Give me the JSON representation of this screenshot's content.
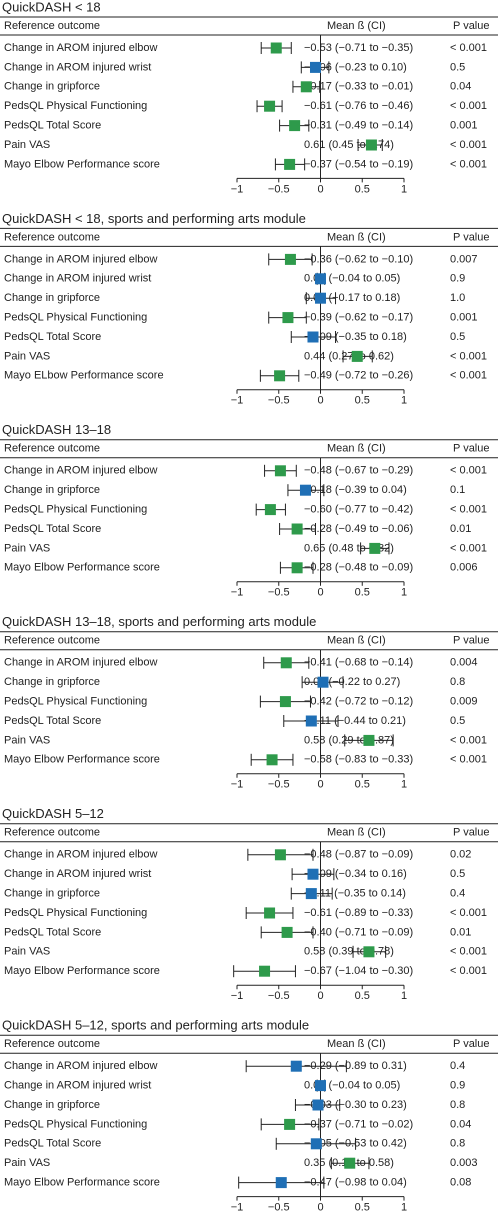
{
  "chart_data": [
    {
      "type": "forest",
      "title": "QuickDASH < 18",
      "columns": [
        "Reference outcome",
        "Mean ß (CI)",
        "P value"
      ],
      "categories": [
        "Change in AROM injured elbow",
        "Change in AROM injured wrist",
        "Change in gripforce",
        "PedsQL Physical Functioning",
        "PedsQL Total Score",
        "Pain VAS",
        "Mayo Elbow Performance score"
      ],
      "values": [
        -0.53,
        -0.06,
        -0.17,
        -0.61,
        -0.31,
        0.61,
        -0.37
      ],
      "lower": [
        -0.71,
        -0.23,
        -0.33,
        -0.76,
        -0.49,
        0.45,
        -0.54
      ],
      "upper": [
        -0.35,
        0.1,
        -0.01,
        -0.46,
        -0.14,
        0.74,
        -0.19
      ],
      "value_labels": [
        "−0.53 (−0.71 to −0.35)",
        "−0.06 (−0.23 to 0.10)",
        "−0.17 (−0.33 to −0.01)",
        "−0.61 (−0.76 to −0.46)",
        "−0.31 (−0.49 to −0.14)",
        "0.61 (0.45 to 0.74)",
        "−0.37 (−0.54 to −0.19)"
      ],
      "p_values": [
        "< 0.001",
        "0.5",
        "0.04",
        "< 0.001",
        "0.001",
        "< 0.001",
        "< 0.001"
      ],
      "colors": [
        "#2e9a4b",
        "#1f6fb5",
        "#2e9a4b",
        "#2e9a4b",
        "#2e9a4b",
        "#2e9a4b",
        "#2e9a4b"
      ],
      "xlim": [
        -1,
        1
      ],
      "xticks": [
        {
          "value": -1,
          "label": "−1"
        },
        {
          "value": -0.5,
          "label": "−0.5"
        },
        0,
        0.5,
        1
      ]
    },
    {
      "type": "forest",
      "title": "QuickDASH < 18, sports and performing arts module",
      "columns": [
        "Reference outcome",
        "Mean ß (CI)",
        "P value"
      ],
      "categories": [
        "Change in AROM injured elbow",
        "Change in AROM injured wrist",
        "Change in gripforce",
        "PedsQL Physical Functioning",
        "PedsQL Total Score",
        "Pain VAS",
        "Mayo ELbow Performance score"
      ],
      "values": [
        -0.36,
        0,
        0,
        -0.39,
        -0.09,
        0.44,
        -0.49
      ],
      "lower": [
        -0.62,
        -0.04,
        -0.17,
        -0.62,
        -0.35,
        0.27,
        -0.72
      ],
      "upper": [
        -0.1,
        0.05,
        0.18,
        -0.17,
        0.18,
        0.62,
        -0.26
      ],
      "value_labels": [
        "−0.36 (−0.62 to −0.10)",
        "0.00 (−0.04 to 0.05)",
        "0.00 (−0.17 to 0.18)",
        "−0.39 (−0.62 to −0.17)",
        "−0.09 (−0.35 to 0.18)",
        "0.44 (0.27 to 0.62)",
        "−0.49 (−0.72 to −0.26)"
      ],
      "p_values": [
        "0.007",
        "0.9",
        "1.0",
        "0.001",
        "0.5",
        "< 0.001",
        "< 0.001"
      ],
      "colors": [
        "#2e9a4b",
        "#1f6fb5",
        "#1f6fb5",
        "#2e9a4b",
        "#1f6fb5",
        "#2e9a4b",
        "#2e9a4b"
      ],
      "xlim": [
        -1,
        1
      ],
      "xticks": [
        {
          "value": -1,
          "label": "−1"
        },
        {
          "value": -0.5,
          "label": "−0.5"
        },
        0,
        0.5,
        1
      ]
    },
    {
      "type": "forest",
      "title": "QuickDASH 13–18",
      "columns": [
        "Reference outcome",
        "Mean ß (CI)",
        "P value"
      ],
      "categories": [
        "Change in AROM injured elbow",
        "Change in gripforce",
        "PedsQL Physical Functioning",
        "PedsQL Total Score",
        "Pain VAS",
        "Mayo Elbow Performance score"
      ],
      "values": [
        -0.48,
        -0.18,
        -0.6,
        -0.28,
        0.65,
        -0.28
      ],
      "lower": [
        -0.67,
        -0.39,
        -0.77,
        -0.49,
        0.48,
        -0.48
      ],
      "upper": [
        -0.29,
        0.04,
        -0.42,
        -0.06,
        0.82,
        -0.09
      ],
      "value_labels": [
        "−0.48 (−0.67 to −0.29)",
        "−0.18 (−0.39 to 0.04)",
        "−0.60 (−0.77 to −0.42)",
        "−0.28 (−0.49 to −0.06)",
        "0.65 (0.48 to 0.82)",
        "−0.28 (−0.48 to −0.09)"
      ],
      "p_values": [
        "< 0.001",
        "0.1",
        "< 0.001",
        "0.01",
        "< 0.001",
        "0.006"
      ],
      "colors": [
        "#2e9a4b",
        "#1f6fb5",
        "#2e9a4b",
        "#2e9a4b",
        "#2e9a4b",
        "#2e9a4b"
      ],
      "xlim": [
        -1,
        1
      ],
      "xticks": [
        {
          "value": -1,
          "label": "−1"
        },
        {
          "value": -0.5,
          "label": "−0.5"
        },
        0,
        0.5,
        1
      ]
    },
    {
      "type": "forest",
      "title": "QuickDASH 13–18, sports and performing arts module",
      "columns": [
        "Reference outcome",
        "Mean ß (CI)",
        "P value"
      ],
      "categories": [
        "Change in AROM injured elbow",
        "Change in gripforce",
        "PedsQL Physical Functioning",
        "PedsQL Total Score",
        "Pain VAS",
        "Mayo Elbow Performance score"
      ],
      "values": [
        -0.41,
        0.03,
        -0.42,
        -0.11,
        0.58,
        -0.58
      ],
      "lower": [
        -0.68,
        -0.22,
        -0.72,
        -0.44,
        0.29,
        -0.83
      ],
      "upper": [
        -0.14,
        0.27,
        -0.12,
        0.21,
        0.87,
        -0.33
      ],
      "value_labels": [
        "−0.41 (−0.68 to −0.14)",
        "0.03 (−0.22 to 0.27)",
        "−0.42 (−0.72 to −0.12)",
        "−0.11 (−0.44 to 0.21)",
        "0.58 (0.29 to 0.87)",
        "−0.58 (−0.83 to −0.33)"
      ],
      "p_values": [
        "0.004",
        "0.8",
        "0.009",
        "0.5",
        "< 0.001",
        "< 0.001"
      ],
      "colors": [
        "#2e9a4b",
        "#1f6fb5",
        "#2e9a4b",
        "#1f6fb5",
        "#2e9a4b",
        "#2e9a4b"
      ],
      "xlim": [
        -1,
        1
      ],
      "xticks": [
        {
          "value": -1,
          "label": "−1"
        },
        {
          "value": -0.5,
          "label": "−0.5"
        },
        0,
        0.5,
        1
      ]
    },
    {
      "type": "forest",
      "title": "QuickDASH 5–12",
      "columns": [
        "Reference outcome",
        "Mean ß (CI)",
        "P value"
      ],
      "categories": [
        "Change in AROM injured elbow",
        "Change in AROM injured wrist",
        "Change in gripforce",
        "PedsQL Physical Functioning",
        "PedsQL Total Score",
        "Pain VAS",
        "Mayo Elbow Performance score"
      ],
      "values": [
        -0.48,
        -0.09,
        -0.11,
        -0.61,
        -0.4,
        0.58,
        -0.67
      ],
      "lower": [
        -0.87,
        -0.34,
        -0.35,
        -0.89,
        -0.71,
        0.39,
        -1.04
      ],
      "upper": [
        -0.09,
        0.16,
        0.14,
        -0.33,
        -0.09,
        0.78,
        -0.3
      ],
      "value_labels": [
        "−0.48 (−0.87 to −0.09)",
        "−0.09 (−0.34 to 0.16)",
        "−0.11 (−0.35 to 0.14)",
        "−0.61 (−0.89 to −0.33)",
        "−0.40 (−0.71 to −0.09)",
        "0.58 (0.39 to 0.78)",
        "−0.67 (−1.04 to −0.30)"
      ],
      "p_values": [
        "0.02",
        "0.5",
        "0.4",
        "< 0.001",
        "0.01",
        "< 0.001",
        "< 0.001"
      ],
      "colors": [
        "#2e9a4b",
        "#1f6fb5",
        "#1f6fb5",
        "#2e9a4b",
        "#2e9a4b",
        "#2e9a4b",
        "#2e9a4b"
      ],
      "xlim": [
        -1,
        1
      ],
      "xticks": [
        {
          "value": -1,
          "label": "−1"
        },
        {
          "value": -0.5,
          "label": "−0.5"
        },
        0,
        0.5,
        1
      ]
    },
    {
      "type": "forest",
      "title": "QuickDASH 5–12, sports and performing arts module",
      "columns": [
        "Reference outcome",
        "Mean ß (CI)",
        "P value"
      ],
      "categories": [
        "Change in AROM injured elbow",
        "Change in AROM injured wrist",
        "Change in gripforce",
        "PedsQL Physical Functioning",
        "PedsQL Total Score",
        "Pain VAS",
        "Mayo Elbow Performance score"
      ],
      "values": [
        -0.29,
        0,
        -0.03,
        -0.37,
        -0.05,
        0.35,
        -0.47
      ],
      "lower": [
        -0.89,
        -0.04,
        -0.3,
        -0.71,
        -0.53,
        0.13,
        -0.98
      ],
      "upper": [
        0.31,
        0.05,
        0.23,
        -0.02,
        0.42,
        0.58,
        0.04
      ],
      "value_labels": [
        "−0.29 (−0.89 to 0.31)",
        "0.00 (−0.04 to 0.05)",
        "−0.03 (−0.30 to 0.23)",
        "−0.37 (−0.71 to −0.02)",
        "−0.05 (−0.53 to 0.42)",
        "0.35 (0.13 to 0.58)",
        "−0.47 (−0.98 to 0.04)"
      ],
      "p_values": [
        "0.4",
        "0.9",
        "0.8",
        "0.04",
        "0.8",
        "0.003",
        "0.08"
      ],
      "colors": [
        "#1f6fb5",
        "#1f6fb5",
        "#1f6fb5",
        "#2e9a4b",
        "#1f6fb5",
        "#2e9a4b",
        "#1f6fb5"
      ],
      "xlim": [
        -1,
        1
      ],
      "xticks": [
        {
          "value": -1,
          "label": "−1"
        },
        {
          "value": -0.5,
          "label": "−0.5"
        },
        0,
        0.5,
        1
      ]
    }
  ]
}
